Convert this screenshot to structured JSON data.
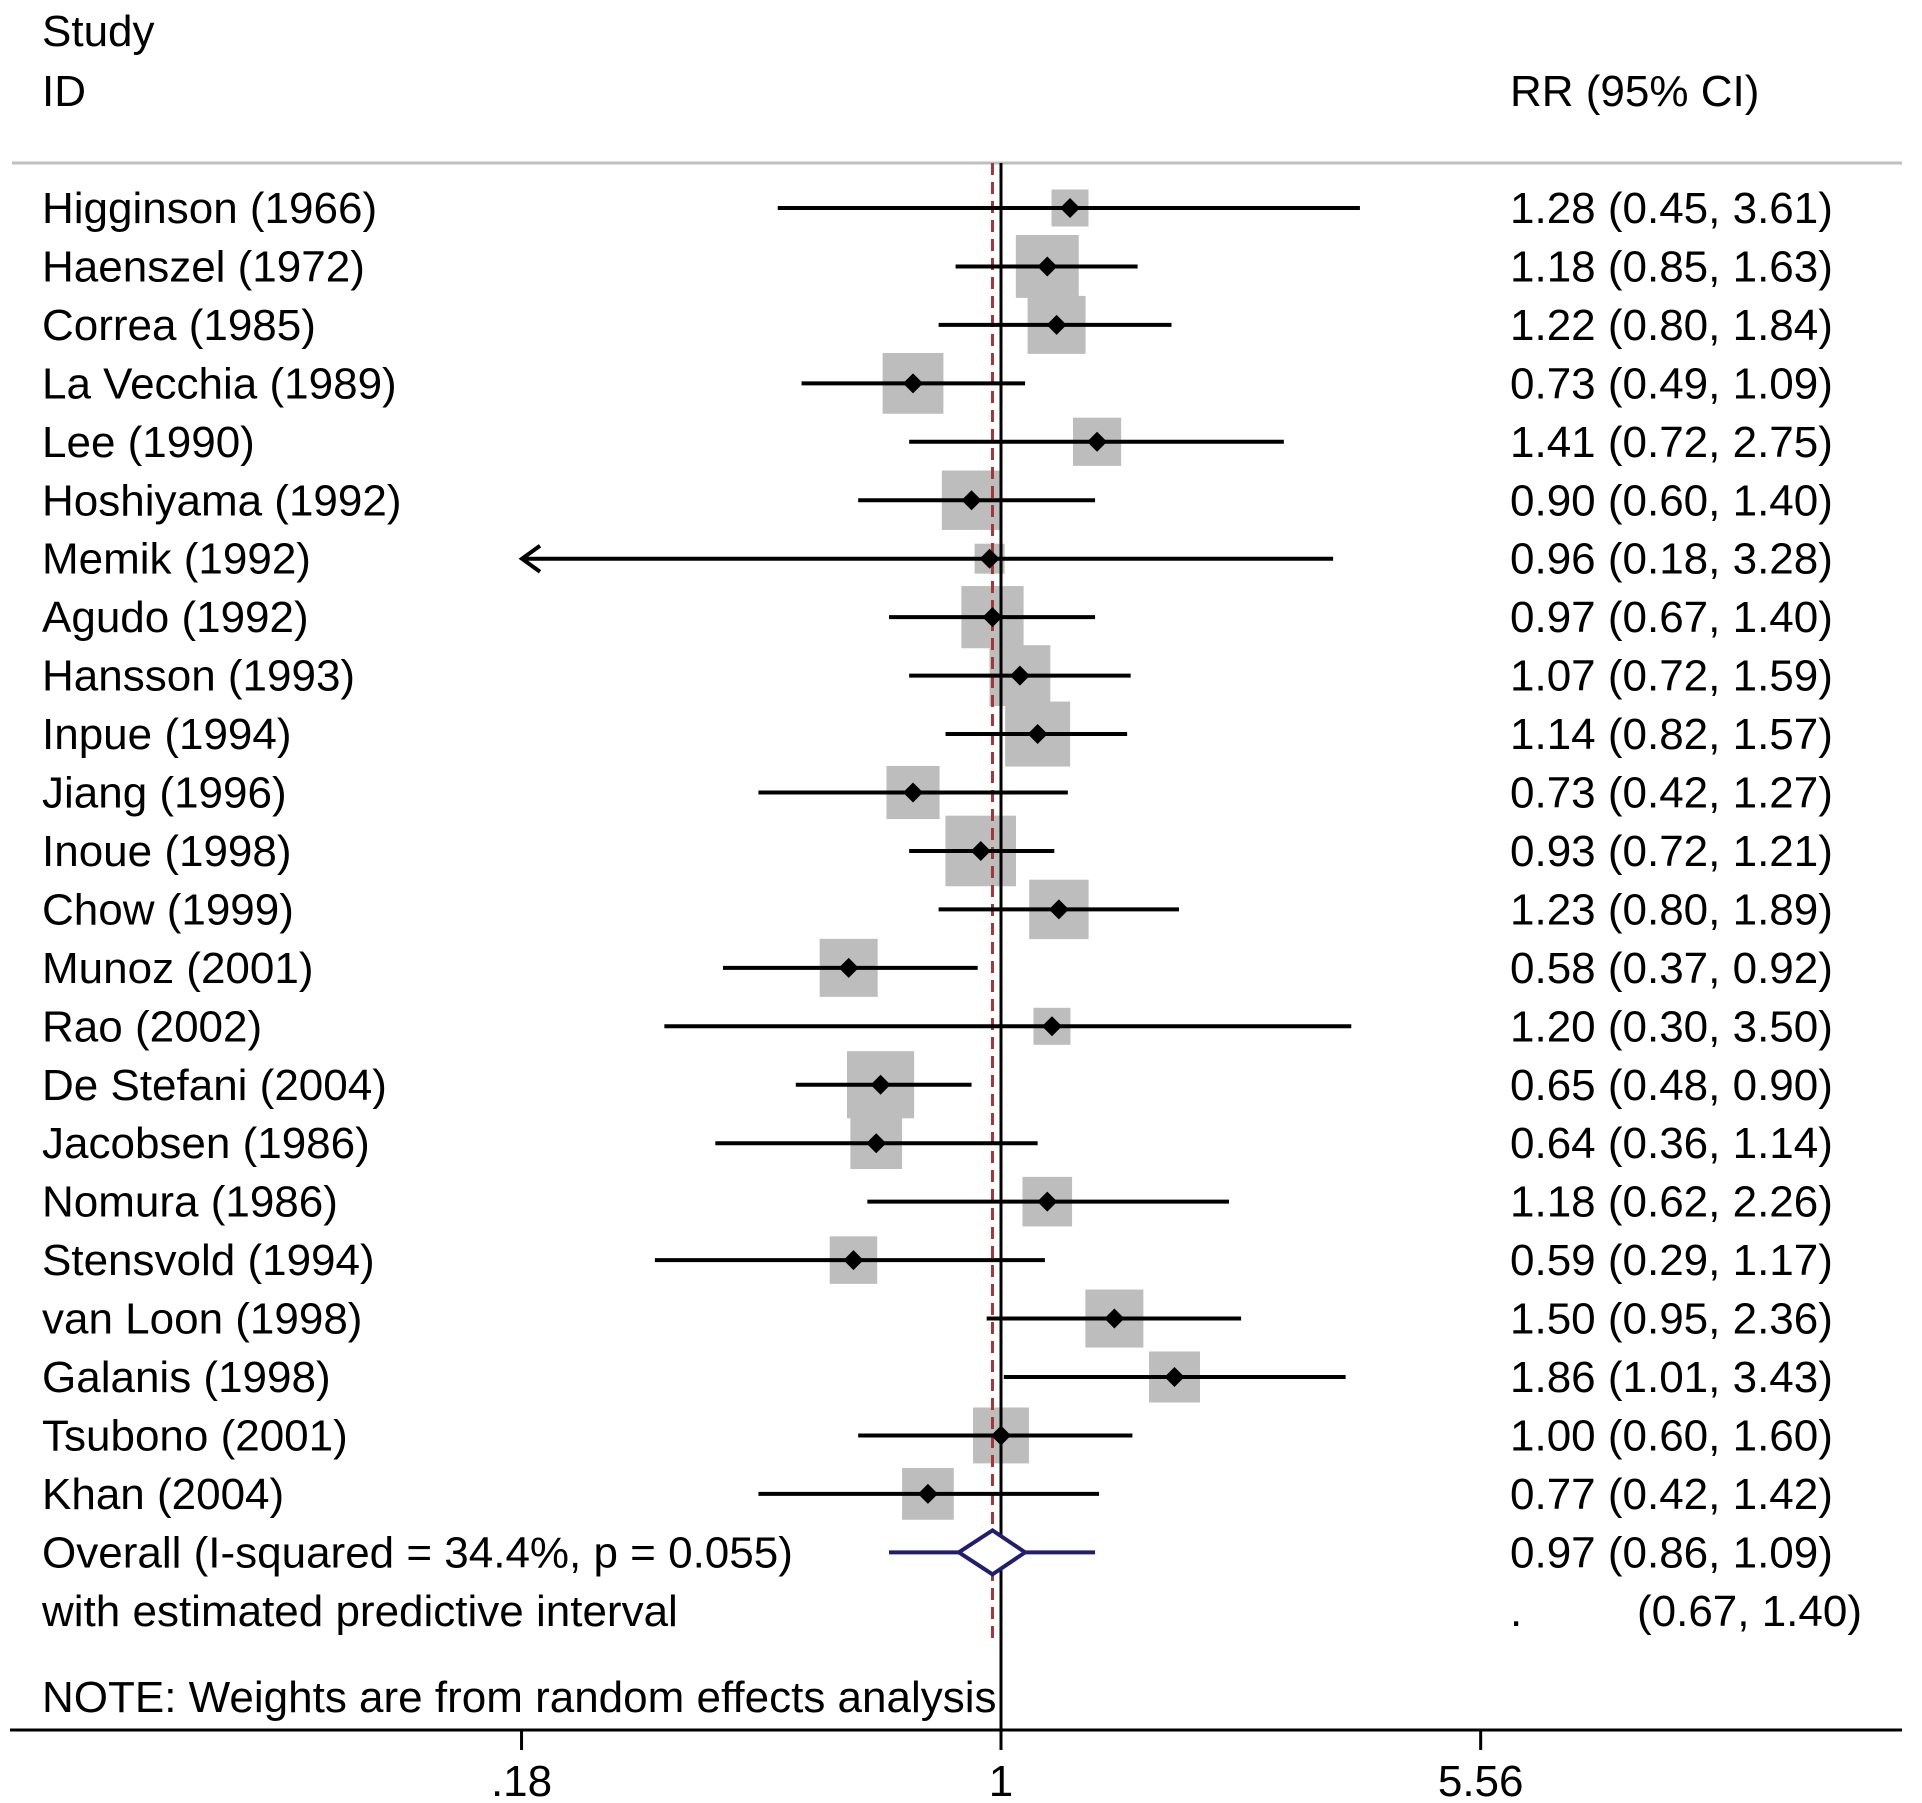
{
  "header": {
    "study_label": "Study",
    "id_label": "ID",
    "effect_label": "RR (95% CI)"
  },
  "note": "NOTE: Weights are from random effects analysis",
  "colors": {
    "text": "#000000",
    "ci_line": "#000000",
    "point": "#000000",
    "weight_box": "#bdbdbd",
    "overall_diamond": "#1f1f6e",
    "overall_dashed": "#a0383a",
    "header_rule": "#bfbfbf"
  },
  "chart_data": {
    "type": "forest",
    "x_scale": "log",
    "null_line": 1,
    "axis_ticks": [
      0.18,
      1,
      5.56
    ],
    "axis_tick_labels": [
      ".18",
      "1",
      "5.56"
    ],
    "x_range": [
      0.18,
      5.56
    ],
    "studies": [
      {
        "label": "Higginson (1966)",
        "rr": 1.28,
        "lo": 0.45,
        "hi": 3.61,
        "text": "1.28 (0.45, 3.61)",
        "relative_weight": 0.3
      },
      {
        "label": "Haenszel (1972)",
        "rr": 1.18,
        "lo": 0.85,
        "hi": 1.63,
        "text": "1.18 (0.85, 1.63)",
        "relative_weight": 0.67
      },
      {
        "label": "Correa (1985)",
        "rr": 1.22,
        "lo": 0.8,
        "hi": 1.84,
        "text": "1.22 (0.80, 1.84)",
        "relative_weight": 0.6
      },
      {
        "label": "La Vecchia (1989)",
        "rr": 0.73,
        "lo": 0.49,
        "hi": 1.09,
        "text": "0.73 (0.49, 1.09)",
        "relative_weight": 0.64
      },
      {
        "label": "Lee (1990)",
        "rr": 1.41,
        "lo": 0.72,
        "hi": 2.75,
        "text": "1.41 (0.72, 2.75)",
        "relative_weight": 0.46
      },
      {
        "label": "Hoshiyama (1992)",
        "rr": 0.9,
        "lo": 0.6,
        "hi": 1.4,
        "text": "0.90 (0.60, 1.40)",
        "relative_weight": 0.62
      },
      {
        "label": "Memik (1992)",
        "rr": 0.96,
        "lo": 0.18,
        "hi": 3.28,
        "text": "0.96 (0.18, 3.28)",
        "relative_weight": 0.2,
        "lower_arrow": true
      },
      {
        "label": "Agudo (1992)",
        "rr": 0.97,
        "lo": 0.67,
        "hi": 1.4,
        "text": "0.97 (0.67, 1.40)",
        "relative_weight": 0.66
      },
      {
        "label": "Hansson (1993)",
        "rr": 1.07,
        "lo": 0.72,
        "hi": 1.59,
        "text": "1.07 (0.72, 1.59)",
        "relative_weight": 0.64
      },
      {
        "label": "Inpue (1994)",
        "rr": 1.14,
        "lo": 0.82,
        "hi": 1.57,
        "text": "1.14 (0.82, 1.57)",
        "relative_weight": 0.7
      },
      {
        "label": "Jiang (1996)",
        "rr": 0.73,
        "lo": 0.42,
        "hi": 1.27,
        "text": "0.73 (0.42, 1.27)",
        "relative_weight": 0.53
      },
      {
        "label": "Inoue (1998)",
        "rr": 0.93,
        "lo": 0.72,
        "hi": 1.21,
        "text": "0.93 (0.72, 1.21)",
        "relative_weight": 0.78
      },
      {
        "label": "Chow (1999)",
        "rr": 1.23,
        "lo": 0.8,
        "hi": 1.89,
        "text": "1.23 (0.80, 1.89)",
        "relative_weight": 0.62
      },
      {
        "label": "Munoz (2001)",
        "rr": 0.58,
        "lo": 0.37,
        "hi": 0.92,
        "text": "0.58 (0.37, 0.92)",
        "relative_weight": 0.6
      },
      {
        "label": "Rao (2002)",
        "rr": 1.2,
        "lo": 0.3,
        "hi": 3.5,
        "text": "1.20 (0.30, 3.50)",
        "relative_weight": 0.3
      },
      {
        "label": "De Stefani (2004)",
        "rr": 0.65,
        "lo": 0.48,
        "hi": 0.9,
        "text": "0.65 (0.48, 0.90)",
        "relative_weight": 0.73
      },
      {
        "label": "Jacobsen (1986)",
        "rr": 0.64,
        "lo": 0.36,
        "hi": 1.14,
        "text": "0.64 (0.36, 1.14)",
        "relative_weight": 0.51
      },
      {
        "label": "Nomura (1986)",
        "rr": 1.18,
        "lo": 0.62,
        "hi": 2.26,
        "text": "1.18 (0.62, 2.26)",
        "relative_weight": 0.48
      },
      {
        "label": "Stensvold (1994)",
        "rr": 0.59,
        "lo": 0.29,
        "hi": 1.17,
        "text": "0.59 (0.29, 1.17)",
        "relative_weight": 0.45
      },
      {
        "label": "van Loon (1998)",
        "rr": 1.5,
        "lo": 0.95,
        "hi": 2.36,
        "text": "1.50 (0.95, 2.36)",
        "relative_weight": 0.6
      },
      {
        "label": "Galanis (1998)",
        "rr": 1.86,
        "lo": 1.01,
        "hi": 3.43,
        "text": "1.86 (1.01, 3.43)",
        "relative_weight": 0.5
      },
      {
        "label": "Tsubono (2001)",
        "rr": 1.0,
        "lo": 0.6,
        "hi": 1.6,
        "text": "1.00 (0.60, 1.60)",
        "relative_weight": 0.57
      },
      {
        "label": "Khan (2004)",
        "rr": 0.77,
        "lo": 0.42,
        "hi": 1.42,
        "text": "0.77 (0.42, 1.42)",
        "relative_weight": 0.51
      }
    ],
    "overall": {
      "label": "Overall  (I-squared = 34.4%, p = 0.055)",
      "rr": 0.97,
      "lo": 0.86,
      "hi": 1.09,
      "text": "0.97 (0.86, 1.09)",
      "predictive_label": "with estimated predictive interval",
      "predictive_lo": 0.67,
      "predictive_hi": 1.4,
      "predictive_point": ".",
      "predictive_text": "(0.67, 1.40)"
    }
  }
}
